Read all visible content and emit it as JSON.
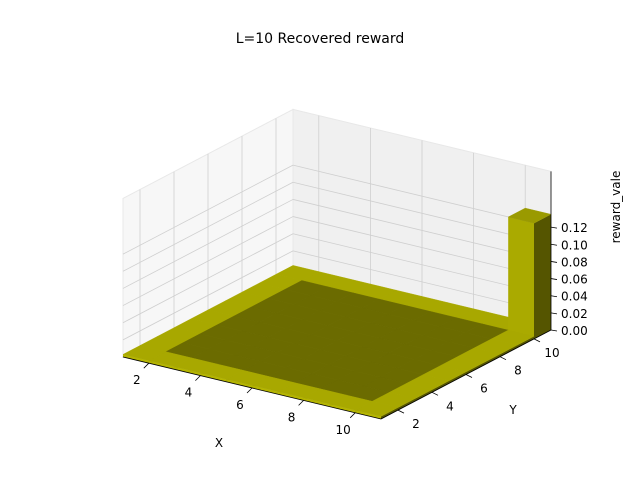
{
  "chart_data": {
    "type": "bar3d",
    "title": "L=10 Recovered reward",
    "xlabel": "X",
    "ylabel": "Y",
    "zlabel": "reward_vale",
    "x_ticks": [
      "2",
      "4",
      "6",
      "8",
      "10"
    ],
    "y_ticks": [
      "2",
      "4",
      "6",
      "8",
      "10"
    ],
    "z_ticks": [
      "0.00",
      "0.02",
      "0.04",
      "0.06",
      "0.08",
      "0.10",
      "0.12"
    ],
    "xlim": [
      1,
      11
    ],
    "ylim": [
      1,
      11
    ],
    "zlim": [
      0,
      0.14
    ],
    "grid": true,
    "bar_color": "#b5b500",
    "pane_color": "#f2f2f2",
    "grid_size": 10,
    "bars": [
      {
        "x": 10,
        "y": 10,
        "value": 0.135
      }
    ],
    "default_value": 0.0
  }
}
